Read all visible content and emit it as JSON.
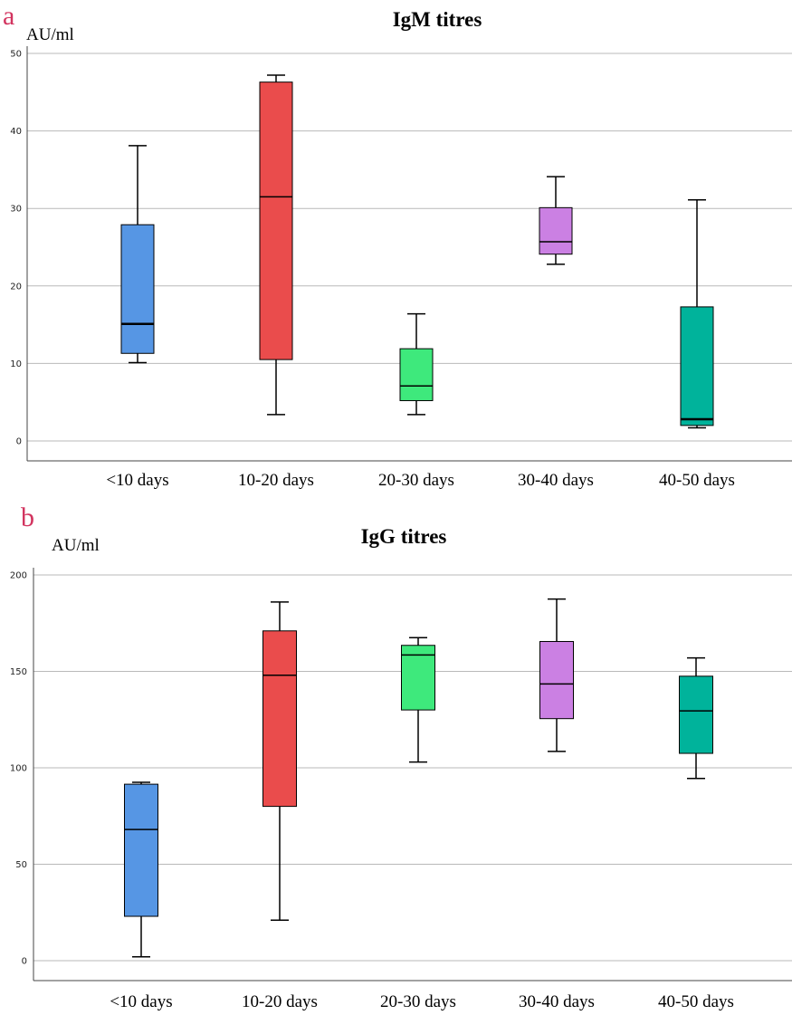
{
  "chart_data": [
    {
      "type": "box",
      "panel": "a",
      "title": "IgM titres",
      "ylabel": "AU/ml",
      "ylim": [
        0,
        50
      ],
      "yticks": [
        0,
        10,
        20,
        30,
        40,
        50
      ],
      "grid": true,
      "categories": [
        "<10 days",
        "10-20 days",
        "20-30 days",
        "30-40 days",
        "40-50 days"
      ],
      "boxes": [
        {
          "min": 10.1,
          "q1": 11.3,
          "median": 15.1,
          "q3": 27.9,
          "max": 38.1,
          "color": "#5696e4"
        },
        {
          "min": 3.4,
          "q1": 10.5,
          "median": 31.5,
          "q3": 46.3,
          "max": 47.2,
          "color": "#ea4c4c"
        },
        {
          "min": 3.4,
          "q1": 5.2,
          "median": 7.1,
          "q3": 11.9,
          "max": 16.4,
          "color": "#3ee97c"
        },
        {
          "min": 22.8,
          "q1": 24.1,
          "median": 25.7,
          "q3": 30.1,
          "max": 34.1,
          "color": "#cb80e3"
        },
        {
          "min": 1.7,
          "q1": 2.0,
          "median": 2.8,
          "q3": 17.3,
          "max": 31.1,
          "color": "#00b39b"
        }
      ]
    },
    {
      "type": "box",
      "panel": "b",
      "title": "IgG titres",
      "ylabel": "AU/ml",
      "ylim": [
        0,
        200
      ],
      "yticks": [
        0,
        50,
        100,
        150,
        200
      ],
      "grid": true,
      "categories": [
        "<10 days",
        "10-20 days",
        "20-30 days",
        "30-40 days",
        "40-50 days"
      ],
      "boxes": [
        {
          "min": 2,
          "q1": 23,
          "median": 68,
          "q3": 91.5,
          "max": 92.5,
          "color": "#5696e4"
        },
        {
          "min": 21,
          "q1": 80,
          "median": 148,
          "q3": 171,
          "max": 186,
          "color": "#ea4c4c"
        },
        {
          "min": 103,
          "q1": 130,
          "median": 158.5,
          "q3": 163.5,
          "max": 167.5,
          "color": "#3ee97c"
        },
        {
          "min": 108.5,
          "q1": 125.5,
          "median": 143.5,
          "q3": 165.5,
          "max": 187.5,
          "color": "#cb80e3"
        },
        {
          "min": 94.5,
          "q1": 107.5,
          "median": 129.5,
          "q3": 147.5,
          "max": 157,
          "color": "#00b39b"
        }
      ]
    }
  ]
}
